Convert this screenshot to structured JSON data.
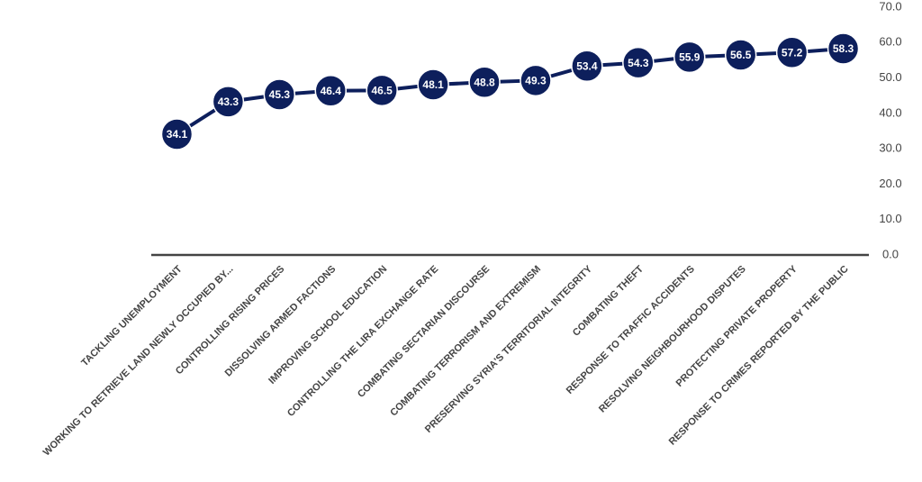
{
  "chart_data": {
    "type": "line",
    "categories": [
      "TACKLING UNEMPLOYMENT",
      "WORKING TO RETRIEVE LAND NEWLY OCCUPIED BY...",
      "CONTROLLING RISING PRICES",
      "DISSOLVING ARMED FACTIONS",
      "IMPROVING SCHOOL EDUCATION",
      "CONTROLLING THE LIRA EXCHANGE RATE",
      "COMBATING SECTARIAN DISCOURSE",
      "COMBATING TERRORISM AND EXTREMISM",
      "PRESERVING SYRIA'S TERRITORIAL INTEGRITY",
      "COMBATING THEFT",
      "RESPONSE TO TRAFFIC ACCIDENTS",
      "RESOLVING NEIGHBOURHOOD DISPUTES",
      "PROTECTING PRIVATE PROPERTY",
      "RESPONSE TO CRIMES REPORTED BY THE PUBLIC"
    ],
    "values": [
      34.1,
      43.3,
      45.3,
      46.4,
      46.5,
      48.1,
      48.8,
      49.3,
      53.4,
      54.3,
      55.9,
      56.5,
      57.2,
      58.3
    ],
    "color": "#0d1f5c",
    "ylim": [
      0,
      70
    ],
    "yticks": [
      {
        "value": 0,
        "label": "0.0"
      },
      {
        "value": 10,
        "label": "10.0"
      },
      {
        "value": 20,
        "label": "20.0"
      },
      {
        "value": 30,
        "label": "30.0"
      },
      {
        "value": 40,
        "label": "40.0"
      },
      {
        "value": 50,
        "label": "50.0"
      },
      {
        "value": 60,
        "label": "60.0"
      },
      {
        "value": 70,
        "label": "70.0"
      }
    ],
    "y_axis_side": "right",
    "grid": false
  }
}
